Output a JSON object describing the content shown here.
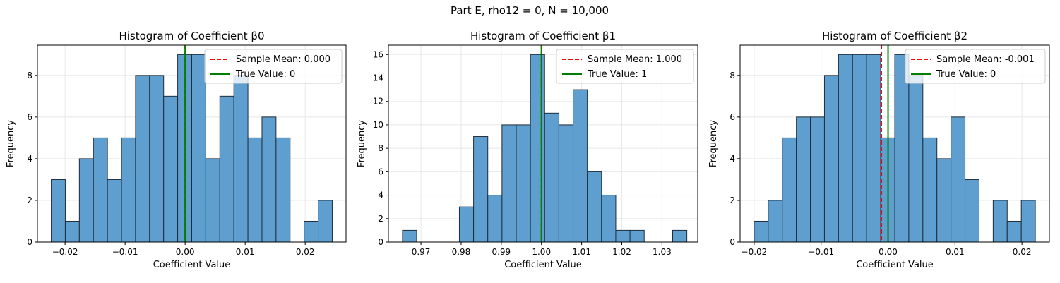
{
  "figure": {
    "suptitle": "Part E, rho12 = 0, N = 10,000"
  },
  "colors": {
    "bar_fill": "#5f9fcf",
    "bar_edge": "#1f2d3a",
    "mean_line": "#ff0000",
    "true_line": "#008000",
    "grid": "#e8e8e8"
  },
  "chart_data": [
    {
      "type": "bar",
      "title": "Histogram of Coefficient β0",
      "xlabel": "Coefficient Value",
      "ylabel": "Frequency",
      "xlim": [
        -0.0246,
        0.0268
      ],
      "ylim": [
        0,
        9.45
      ],
      "xticks": [
        -0.02,
        -0.01,
        0.0,
        0.01,
        0.02
      ],
      "xtick_labels": [
        "−0.02",
        "−0.01",
        "0.00",
        "0.01",
        "0.02"
      ],
      "yticks": [
        0,
        2,
        4,
        6,
        8
      ],
      "grid": true,
      "legend_position": "top-right",
      "bin_start": -0.0223,
      "bin_width": 0.00234,
      "counts": [
        3,
        1,
        4,
        5,
        3,
        5,
        8,
        8,
        7,
        9,
        9,
        4,
        7,
        8,
        5,
        6,
        5,
        0,
        1,
        2
      ],
      "sample_mean": 0.0,
      "true_value": 0,
      "legend": [
        "Sample Mean: 0.000",
        "True Value: 0"
      ]
    },
    {
      "type": "bar",
      "title": "Histogram of Coefficient β1",
      "xlabel": "Coefficient Value",
      "ylabel": "Frequency",
      "xlim": [
        0.9619,
        1.0389
      ],
      "ylim": [
        0,
        16.8
      ],
      "xticks": [
        0.97,
        0.98,
        0.99,
        1.0,
        1.01,
        1.02,
        1.03
      ],
      "xtick_labels": [
        "0.97",
        "0.98",
        "0.99",
        "1.00",
        "1.01",
        "1.02",
        "1.03"
      ],
      "yticks": [
        0,
        2,
        4,
        6,
        8,
        10,
        12,
        14,
        16
      ],
      "grid": true,
      "legend_position": "top-right",
      "bin_start": 0.9654,
      "bin_width": 0.00354,
      "counts": [
        1,
        0,
        0,
        0,
        3,
        9,
        4,
        10,
        10,
        16,
        11,
        10,
        13,
        6,
        4,
        1,
        1,
        0,
        0,
        1
      ],
      "sample_mean": 1.0,
      "true_value": 1,
      "legend": [
        "Sample Mean: 1.000",
        "True Value: 1"
      ]
    },
    {
      "type": "bar",
      "title": "Histogram of Coefficient β2",
      "xlabel": "Coefficient Value",
      "ylabel": "Frequency",
      "xlim": [
        -0.0221,
        0.0241
      ],
      "ylim": [
        0,
        9.45
      ],
      "xticks": [
        -0.02,
        -0.01,
        0.0,
        0.01,
        0.02
      ],
      "xtick_labels": [
        "−0.02",
        "−0.01",
        "0.00",
        "0.01",
        "0.02"
      ],
      "yticks": [
        0,
        2,
        4,
        6,
        8
      ],
      "grid": true,
      "legend_position": "top-right",
      "bin_start": -0.02,
      "bin_width": 0.0021,
      "counts": [
        1,
        2,
        5,
        6,
        6,
        8,
        9,
        9,
        9,
        5,
        9,
        8,
        5,
        4,
        6,
        3,
        0,
        2,
        1,
        2
      ],
      "sample_mean": -0.001,
      "true_value": 0,
      "legend": [
        "Sample Mean: -0.001",
        "True Value: 0"
      ]
    }
  ]
}
